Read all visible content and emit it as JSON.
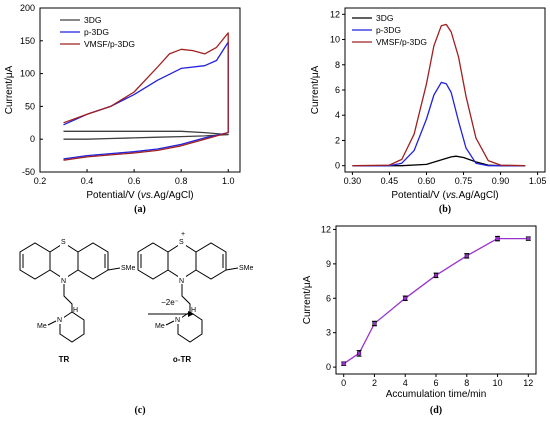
{
  "chart_data": [
    {
      "panel": "(a)",
      "type": "line",
      "xlabel_pre": "Potential/V (",
      "xlabel_italic": "vs.",
      "xlabel_post": "Ag/AgCl)",
      "ylabel": "Current/μA",
      "xlim": [
        0.2,
        1.05
      ],
      "ylim": [
        -50,
        200
      ],
      "xticks": [
        0.2,
        0.4,
        0.6,
        0.8,
        1.0
      ],
      "xtick_labels": [
        "0.2",
        "0.4",
        "0.6",
        "0.8",
        "1.0"
      ],
      "yticks": [
        -50,
        0,
        50,
        100,
        150,
        200
      ],
      "ytick_labels": [
        "-50",
        "0",
        "50",
        "100",
        "150",
        "200"
      ],
      "legend_position": "top-left",
      "series": [
        {
          "name": "3DG",
          "color": "#404040",
          "x": [
            0.3,
            0.4,
            0.5,
            0.6,
            0.7,
            0.8,
            0.9,
            1.0,
            0.9,
            0.8,
            0.7,
            0.6,
            0.5,
            0.4,
            0.3
          ],
          "y": [
            0,
            0,
            1,
            2,
            3,
            4,
            5,
            7,
            10,
            12,
            12,
            12,
            12,
            12,
            12
          ]
        },
        {
          "name": "p-3DG",
          "color": "#2222dd",
          "x": [
            0.3,
            0.4,
            0.5,
            0.6,
            0.7,
            0.8,
            0.9,
            1.0,
            1.0,
            0.95,
            0.9,
            0.8,
            0.7,
            0.6,
            0.5,
            0.4,
            0.3
          ],
          "y": [
            -30,
            -25,
            -22,
            -19,
            -15,
            -8,
            2,
            10,
            148,
            120,
            112,
            108,
            90,
            68,
            50,
            38,
            22
          ]
        },
        {
          "name": "VMSF/p-3DG",
          "color": "#a02020",
          "x": [
            0.3,
            0.4,
            0.5,
            0.6,
            0.7,
            0.8,
            0.9,
            1.0,
            1.0,
            0.95,
            0.9,
            0.85,
            0.8,
            0.75,
            0.7,
            0.6,
            0.5,
            0.4,
            0.3
          ],
          "y": [
            -32,
            -27,
            -24,
            -21,
            -17,
            -10,
            0,
            10,
            162,
            140,
            130,
            135,
            137,
            130,
            110,
            72,
            50,
            38,
            25
          ]
        }
      ]
    },
    {
      "panel": "(b)",
      "type": "line",
      "xlabel_pre": "Potential/V (",
      "xlabel_italic": "vs.",
      "xlabel_post": "Ag/AgCl)",
      "ylabel": "Current/μA",
      "xlim": [
        0.27,
        1.08
      ],
      "ylim": [
        -0.5,
        12.5
      ],
      "xticks": [
        0.3,
        0.45,
        0.6,
        0.75,
        0.9,
        1.05
      ],
      "xtick_labels": [
        "0.30",
        "0.45",
        "0.60",
        "0.75",
        "0.90",
        "1.05"
      ],
      "yticks": [
        0,
        2,
        4,
        6,
        8,
        10,
        12
      ],
      "ytick_labels": [
        "0",
        "2",
        "4",
        "6",
        "8",
        "10",
        "12"
      ],
      "legend_position": "top-left",
      "series": [
        {
          "name": "3DG",
          "color": "#000000",
          "x": [
            0.3,
            0.5,
            0.6,
            0.65,
            0.7,
            0.72,
            0.75,
            0.8,
            0.85,
            0.9,
            1.0
          ],
          "y": [
            0,
            0,
            0.1,
            0.4,
            0.7,
            0.75,
            0.65,
            0.3,
            0.05,
            0,
            0
          ]
        },
        {
          "name": "p-3DG",
          "color": "#2222dd",
          "x": [
            0.3,
            0.45,
            0.5,
            0.55,
            0.6,
            0.63,
            0.66,
            0.68,
            0.7,
            0.73,
            0.76,
            0.8,
            0.85,
            1.0
          ],
          "y": [
            0,
            0,
            0.2,
            1.2,
            3.7,
            5.6,
            6.6,
            6.5,
            5.8,
            3.5,
            1.4,
            0.2,
            0,
            0
          ]
        },
        {
          "name": "VMSF/p-3DG",
          "color": "#a02020",
          "x": [
            0.3,
            0.45,
            0.5,
            0.55,
            0.6,
            0.63,
            0.66,
            0.68,
            0.7,
            0.73,
            0.76,
            0.8,
            0.85,
            0.9,
            1.0
          ],
          "y": [
            0,
            0.05,
            0.5,
            2.5,
            6.5,
            9.5,
            11.1,
            11.2,
            10.6,
            8.6,
            5.5,
            2.2,
            0.4,
            0.05,
            0
          ]
        }
      ]
    },
    {
      "panel": "(d)",
      "type": "line",
      "xlabel": "Accumulation time/min",
      "ylabel": "Current/μA",
      "xlim": [
        -0.5,
        12.5
      ],
      "ylim": [
        -0.6,
        12.3
      ],
      "xticks": [
        0,
        2,
        4,
        6,
        8,
        10,
        12
      ],
      "xtick_labels": [
        "0",
        "2",
        "4",
        "6",
        "8",
        "10",
        "12"
      ],
      "yticks": [
        0,
        3,
        6,
        9,
        12
      ],
      "ytick_labels": [
        "0",
        "3",
        "6",
        "9",
        "12"
      ],
      "series": [
        {
          "name": "",
          "color": "#9933cc",
          "x": [
            0,
            1,
            2,
            4,
            6,
            8,
            10,
            12
          ],
          "y": [
            0.3,
            1.2,
            3.8,
            6.0,
            8.0,
            9.7,
            11.2,
            11.2
          ],
          "err": [
            0.15,
            0.25,
            0.2,
            0.2,
            0.2,
            0.2,
            0.2,
            0.15
          ]
        }
      ]
    }
  ],
  "scheme": {
    "reactant_label": "TR",
    "product_label": "o-TR",
    "arrow_label": "−2e⁻",
    "atom_S": "S",
    "atom_N": "N",
    "atom_SMe": "SMe",
    "atom_Me": "Me",
    "atom_N2": "N",
    "atom_H": "H",
    "charge_plus": "+"
  },
  "captions": {
    "a": "(a)",
    "b": "(b)",
    "c": "(c)",
    "d": "(d)"
  }
}
